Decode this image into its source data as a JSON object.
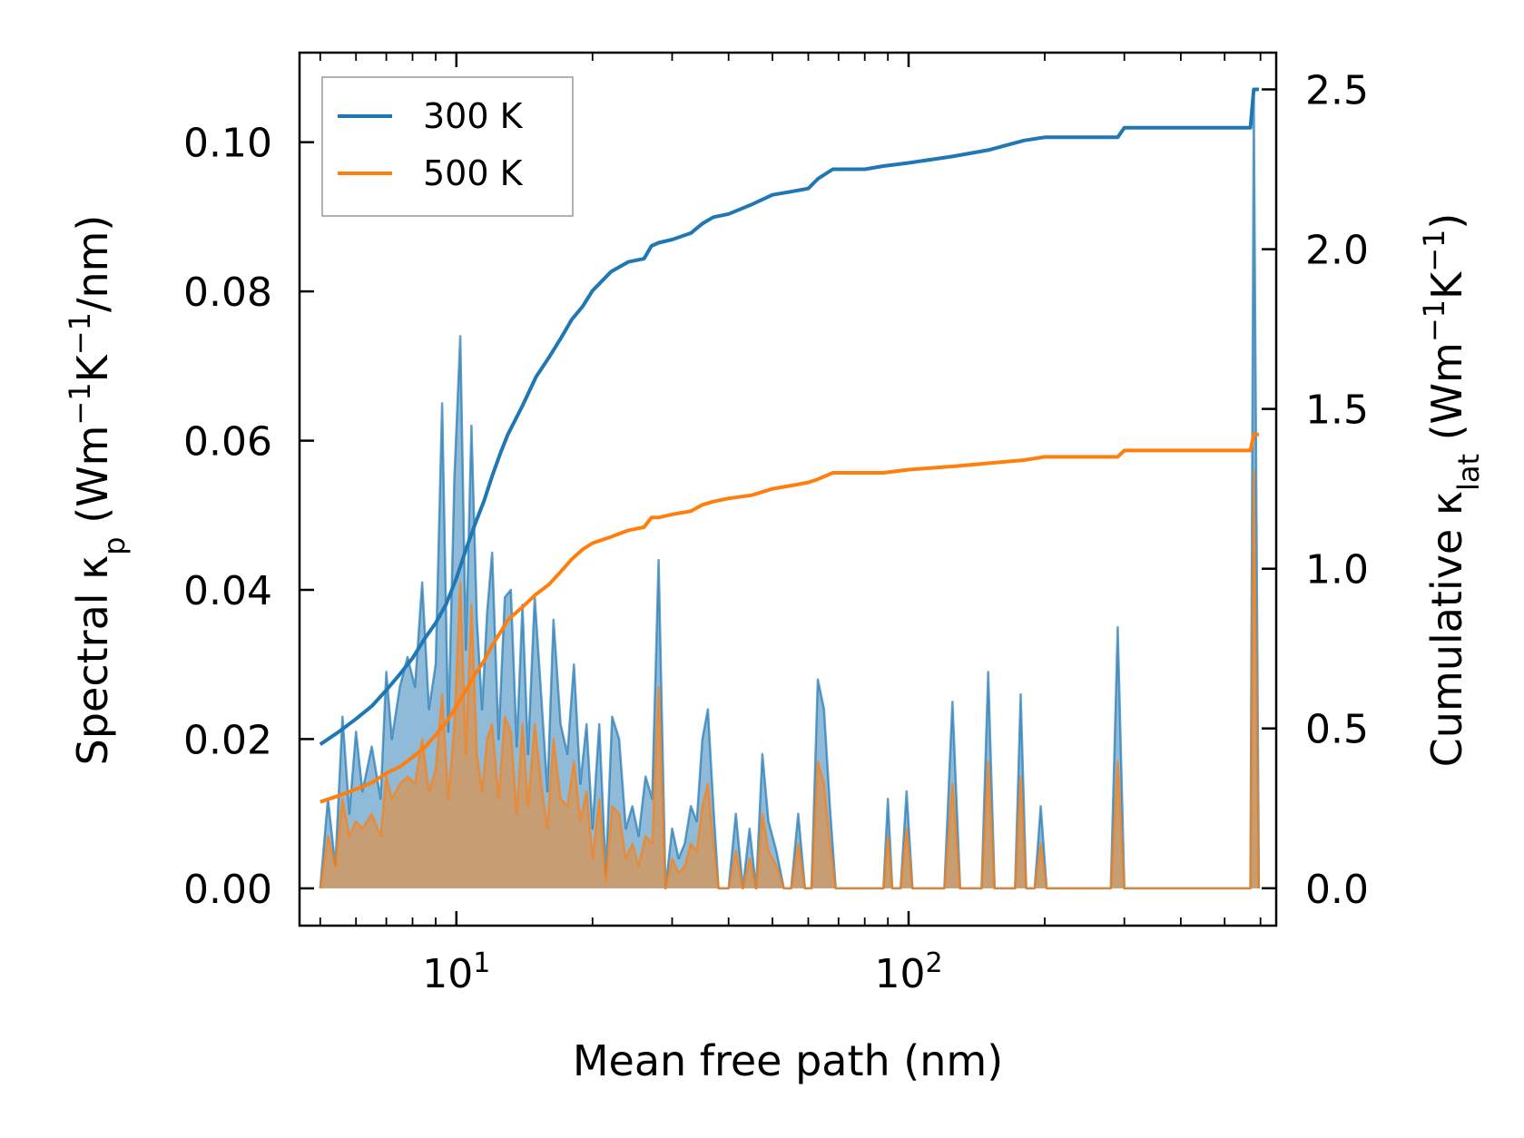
{
  "chart_data": {
    "type": "area",
    "xscale": "log",
    "xlim": [
      4.5,
      650
    ],
    "xlabel": "Mean free path (nm)",
    "x_ticks": [
      {
        "value": 10,
        "base": "10",
        "exp": "1"
      },
      {
        "value": 100,
        "base": "10",
        "exp": "2"
      }
    ],
    "left_axis": {
      "label_main": "Spectral κ",
      "label_sub": "p",
      "label_unit_open": " (Wm",
      "label_sup1": "−1",
      "label_unit_mid": "K",
      "label_sup2": "−1",
      "label_unit_close": "/nm)",
      "ylim": [
        -0.005,
        0.112
      ],
      "ticks": [
        0.0,
        0.02,
        0.04,
        0.06,
        0.08,
        0.1
      ],
      "tick_labels": [
        "0.00",
        "0.02",
        "0.04",
        "0.06",
        "0.08",
        "0.10"
      ]
    },
    "right_axis": {
      "label_main": "Cumulative κ",
      "label_sub": "lat",
      "label_unit_open": " (Wm",
      "label_sup1": "−1",
      "label_unit_mid": "K",
      "label_sup2": "−1",
      "label_unit_close": ")",
      "ylim": [
        -0.117,
        2.615
      ],
      "ticks": [
        0.0,
        0.5,
        1.0,
        1.5,
        2.0,
        2.5
      ],
      "tick_labels": [
        "0.0",
        "0.5",
        "1.0",
        "1.5",
        "2.0",
        "2.5"
      ]
    },
    "legend": {
      "placement": "top-left",
      "entries": [
        {
          "label": "300 K",
          "color": "#1f77b4"
        },
        {
          "label": "500 K",
          "color": "#ff7f0e"
        }
      ]
    },
    "series": [
      {
        "name": "300 K spectral",
        "axis": "left",
        "kind": "area",
        "color": "#1f77b4",
        "x": [
          5.0,
          5.2,
          5.4,
          5.6,
          5.8,
          6.0,
          6.2,
          6.5,
          6.8,
          7.0,
          7.2,
          7.5,
          7.8,
          8.1,
          8.4,
          8.7,
          9.0,
          9.3,
          9.6,
          9.9,
          10.2,
          10.5,
          10.8,
          11.1,
          11.4,
          11.7,
          12.0,
          12.4,
          12.8,
          13.2,
          13.6,
          14.0,
          14.4,
          14.9,
          15.4,
          15.9,
          16.4,
          17.0,
          17.6,
          18.2,
          18.8,
          19.4,
          20.0,
          20.7,
          21.4,
          22.1,
          22.9,
          23.7,
          24.5,
          25.3,
          26.2,
          27.1,
          28.0,
          29.0,
          30.0,
          31.0,
          32.0,
          33.0,
          34.0,
          35.0,
          36.0,
          37.0,
          38.0,
          39.0,
          40.0,
          41.5,
          43.0,
          44.5,
          46.0,
          47.5,
          49.0,
          51.0,
          53.0,
          55.0,
          57.0,
          59.0,
          61.0,
          63.0,
          65.0,
          67.0,
          69.0,
          72.0,
          80.0,
          88.0,
          90.0,
          92.0,
          96.0,
          99.0,
          102.0,
          120.0,
          125.0,
          130.0,
          145.0,
          150.0,
          155.0,
          172.0,
          177.0,
          182.0,
          190.0,
          196.0,
          202.0,
          280.0,
          290.0,
          300.0,
          570.0,
          580.0,
          595.0
        ],
        "values": [
          0.0,
          0.012,
          0.003,
          0.023,
          0.01,
          0.021,
          0.013,
          0.019,
          0.012,
          0.029,
          0.02,
          0.027,
          0.031,
          0.027,
          0.041,
          0.024,
          0.03,
          0.065,
          0.021,
          0.055,
          0.074,
          0.032,
          0.062,
          0.036,
          0.024,
          0.037,
          0.045,
          0.02,
          0.039,
          0.04,
          0.019,
          0.038,
          0.018,
          0.039,
          0.026,
          0.013,
          0.036,
          0.022,
          0.018,
          0.03,
          0.014,
          0.022,
          0.008,
          0.022,
          0.002,
          0.023,
          0.02,
          0.008,
          0.011,
          0.007,
          0.015,
          0.012,
          0.044,
          0.0,
          0.008,
          0.004,
          0.006,
          0.011,
          0.009,
          0.02,
          0.024,
          0.011,
          0.0,
          0.0,
          0.0,
          0.01,
          0.0,
          0.008,
          0.0,
          0.018,
          0.009,
          0.005,
          0.0,
          0.0,
          0.01,
          0.0,
          0.0,
          0.028,
          0.024,
          0.011,
          0.0,
          0.0,
          0.0,
          0.0,
          0.012,
          0.0,
          0.0,
          0.013,
          0.0,
          0.0,
          0.025,
          0.0,
          0.0,
          0.029,
          0.0,
          0.0,
          0.026,
          0.0,
          0.0,
          0.011,
          0.0,
          0.0,
          0.035,
          0.0,
          0.0,
          0.106,
          0.0
        ]
      },
      {
        "name": "500 K spectral",
        "axis": "left",
        "kind": "area",
        "color": "#ff7f0e",
        "x": [
          5.0,
          5.2,
          5.4,
          5.6,
          5.8,
          6.0,
          6.2,
          6.5,
          6.8,
          7.0,
          7.2,
          7.5,
          7.8,
          8.1,
          8.4,
          8.7,
          9.0,
          9.3,
          9.6,
          9.9,
          10.2,
          10.5,
          10.8,
          11.1,
          11.4,
          11.7,
          12.0,
          12.4,
          12.8,
          13.2,
          13.6,
          14.0,
          14.4,
          14.9,
          15.4,
          15.9,
          16.4,
          17.0,
          17.6,
          18.2,
          18.8,
          19.4,
          20.0,
          20.7,
          21.4,
          22.1,
          22.9,
          23.7,
          24.5,
          25.3,
          26.2,
          27.1,
          28.0,
          29.0,
          30.0,
          31.0,
          32.0,
          33.0,
          34.0,
          35.0,
          36.0,
          37.0,
          38.0,
          39.0,
          40.0,
          41.5,
          43.0,
          44.5,
          46.0,
          47.5,
          49.0,
          51.0,
          53.0,
          55.0,
          57.0,
          59.0,
          61.0,
          63.0,
          65.0,
          67.0,
          69.0,
          72.0,
          80.0,
          88.0,
          90.0,
          92.0,
          96.0,
          99.0,
          102.0,
          120.0,
          125.0,
          130.0,
          145.0,
          150.0,
          155.0,
          172.0,
          177.0,
          182.0,
          190.0,
          196.0,
          202.0,
          280.0,
          290.0,
          300.0,
          570.0,
          580.0,
          595.0
        ],
        "values": [
          0.0,
          0.007,
          0.003,
          0.012,
          0.007,
          0.009,
          0.008,
          0.01,
          0.007,
          0.015,
          0.012,
          0.014,
          0.015,
          0.014,
          0.02,
          0.013,
          0.016,
          0.026,
          0.012,
          0.022,
          0.041,
          0.018,
          0.038,
          0.018,
          0.013,
          0.02,
          0.022,
          0.012,
          0.023,
          0.021,
          0.01,
          0.022,
          0.011,
          0.022,
          0.014,
          0.008,
          0.02,
          0.012,
          0.011,
          0.017,
          0.009,
          0.013,
          0.004,
          0.012,
          0.001,
          0.011,
          0.01,
          0.004,
          0.006,
          0.003,
          0.007,
          0.006,
          0.027,
          0.0,
          0.004,
          0.002,
          0.003,
          0.006,
          0.005,
          0.011,
          0.014,
          0.006,
          0.0,
          0.0,
          0.0,
          0.005,
          0.0,
          0.004,
          0.0,
          0.01,
          0.005,
          0.003,
          0.0,
          0.0,
          0.006,
          0.0,
          0.0,
          0.017,
          0.014,
          0.006,
          0.0,
          0.0,
          0.0,
          0.0,
          0.007,
          0.0,
          0.0,
          0.008,
          0.0,
          0.0,
          0.014,
          0.0,
          0.0,
          0.017,
          0.0,
          0.0,
          0.015,
          0.0,
          0.0,
          0.006,
          0.0,
          0.0,
          0.017,
          0.0,
          0.0,
          0.056,
          0.0
        ]
      },
      {
        "name": "300 K cumulative",
        "axis": "right",
        "kind": "line",
        "color": "#1f77b4",
        "x": [
          5.0,
          5.5,
          6.0,
          6.5,
          7.0,
          7.5,
          8.0,
          8.5,
          9.0,
          9.5,
          10.0,
          10.5,
          11.0,
          11.5,
          12.0,
          12.5,
          13.0,
          14.0,
          15.0,
          16.0,
          17.0,
          18.0,
          19.0,
          20.0,
          22.0,
          24.0,
          26.0,
          27.0,
          28.0,
          30.0,
          33.0,
          35.0,
          37.0,
          40.0,
          45.0,
          50.0,
          55.0,
          60.0,
          63.0,
          68.0,
          80.0,
          88.0,
          100.0,
          125.0,
          150.0,
          180.0,
          200.0,
          290.0,
          300.0,
          570.0,
          580.0,
          595.0
        ],
        "values": [
          0.45,
          0.49,
          0.53,
          0.57,
          0.62,
          0.67,
          0.72,
          0.78,
          0.83,
          0.89,
          0.97,
          1.06,
          1.14,
          1.21,
          1.29,
          1.36,
          1.42,
          1.51,
          1.6,
          1.66,
          1.72,
          1.78,
          1.82,
          1.87,
          1.93,
          1.96,
          1.97,
          2.01,
          2.02,
          2.03,
          2.05,
          2.08,
          2.1,
          2.11,
          2.14,
          2.17,
          2.18,
          2.19,
          2.22,
          2.25,
          2.25,
          2.26,
          2.27,
          2.29,
          2.31,
          2.34,
          2.35,
          2.35,
          2.38,
          2.38,
          2.5,
          2.5
        ]
      },
      {
        "name": "500 K cumulative",
        "axis": "right",
        "kind": "line",
        "color": "#ff7f0e",
        "x": [
          5.0,
          5.5,
          6.0,
          6.5,
          7.0,
          7.5,
          8.0,
          8.5,
          9.0,
          9.5,
          10.0,
          10.5,
          11.0,
          11.5,
          12.0,
          12.5,
          13.0,
          14.0,
          15.0,
          16.0,
          17.0,
          18.0,
          19.0,
          20.0,
          22.0,
          24.0,
          26.0,
          27.0,
          28.0,
          30.0,
          33.0,
          35.0,
          37.0,
          40.0,
          45.0,
          50.0,
          55.0,
          60.0,
          63.0,
          68.0,
          80.0,
          88.0,
          100.0,
          125.0,
          150.0,
          180.0,
          200.0,
          290.0,
          300.0,
          570.0,
          580.0,
          595.0
        ],
        "values": [
          0.27,
          0.29,
          0.31,
          0.33,
          0.36,
          0.38,
          0.41,
          0.44,
          0.48,
          0.52,
          0.57,
          0.62,
          0.67,
          0.71,
          0.76,
          0.8,
          0.84,
          0.88,
          0.92,
          0.95,
          0.99,
          1.03,
          1.06,
          1.08,
          1.1,
          1.12,
          1.13,
          1.16,
          1.16,
          1.17,
          1.18,
          1.2,
          1.21,
          1.22,
          1.23,
          1.25,
          1.26,
          1.27,
          1.28,
          1.3,
          1.3,
          1.3,
          1.31,
          1.32,
          1.33,
          1.34,
          1.35,
          1.35,
          1.37,
          1.37,
          1.42,
          1.42
        ]
      }
    ]
  }
}
